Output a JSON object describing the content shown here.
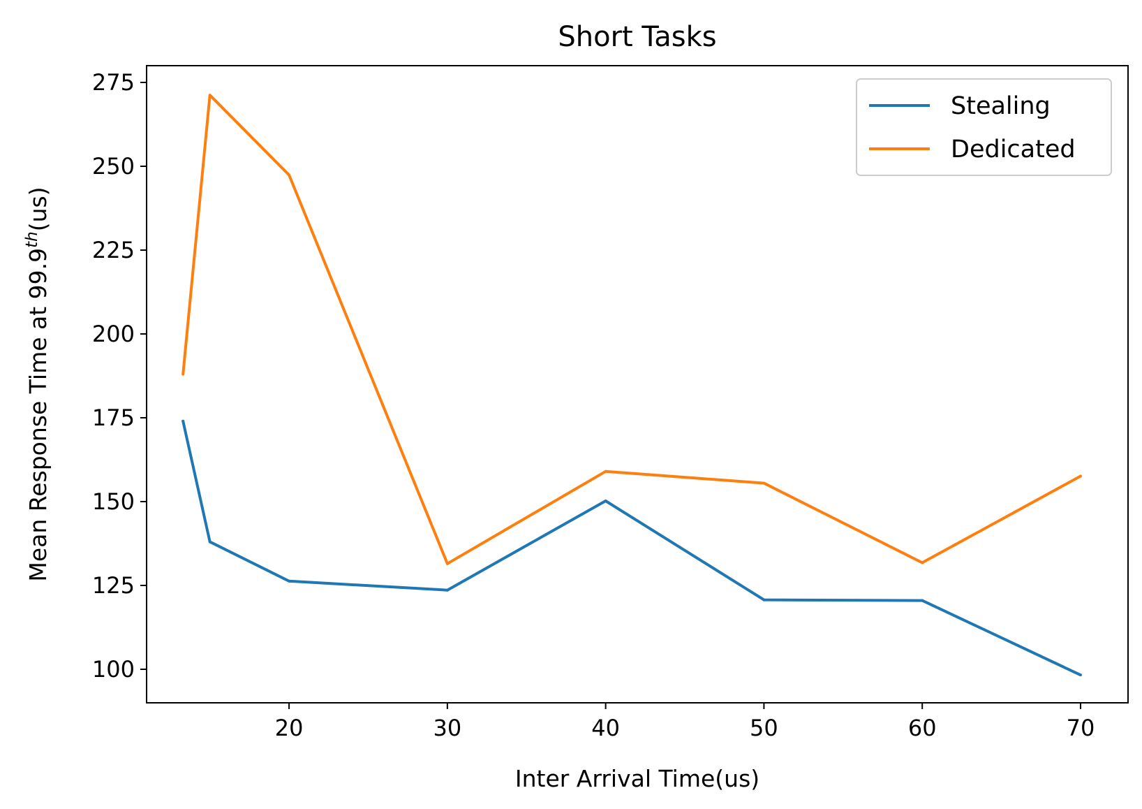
{
  "chart_data": {
    "type": "line",
    "title": "Short Tasks",
    "xlabel": "Inter Arrival Time(us)",
    "ylabel": {
      "prefix": "Mean Response Time at 99.9",
      "superscript": "th",
      "suffix": "(us)"
    },
    "xlim": [
      11,
      73
    ],
    "ylim": [
      90,
      280
    ],
    "xticks": [
      20,
      30,
      40,
      50,
      60,
      70
    ],
    "yticks": [
      100,
      125,
      150,
      175,
      200,
      225,
      250,
      275
    ],
    "grid": false,
    "legend_position": "top-right",
    "series": [
      {
        "name": "Stealing",
        "color": "#1f77b4",
        "x": [
          13.3,
          15,
          20,
          30,
          40,
          50,
          60,
          70
        ],
        "y": [
          174,
          138,
          126.3,
          123.6,
          150.2,
          120.7,
          120.5,
          98.3
        ]
      },
      {
        "name": "Dedicated",
        "color": "#ff7f0e",
        "x": [
          13.3,
          15,
          20,
          30,
          40,
          50,
          60,
          70
        ],
        "y": [
          188,
          271.2,
          247.4,
          131.5,
          159,
          155.5,
          131.8,
          157.6
        ]
      }
    ]
  }
}
